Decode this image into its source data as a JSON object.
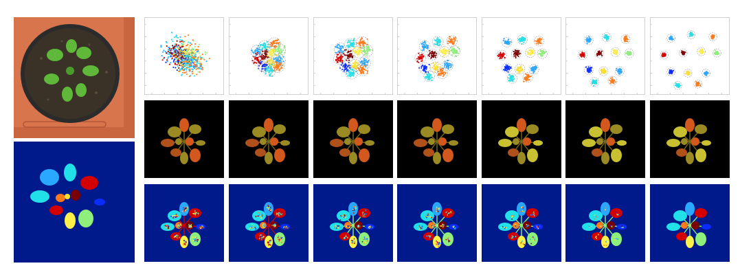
{
  "figure": {
    "columns": 7,
    "rows": [
      "embedding-scatter",
      "leaf-color-rendering",
      "segmentation-map"
    ]
  },
  "colors": {
    "soil_tray": "#d9754d",
    "segmentation_background": "#001a8c",
    "render_background": "#000000",
    "leaf_palette": [
      "#2aa7ff",
      "#22e0e8",
      "#ff7a1a",
      "#d40000",
      "#7a0000",
      "#fff04a",
      "#8ef07a",
      "#0a2cff",
      "#ffe12e"
    ]
  }
}
